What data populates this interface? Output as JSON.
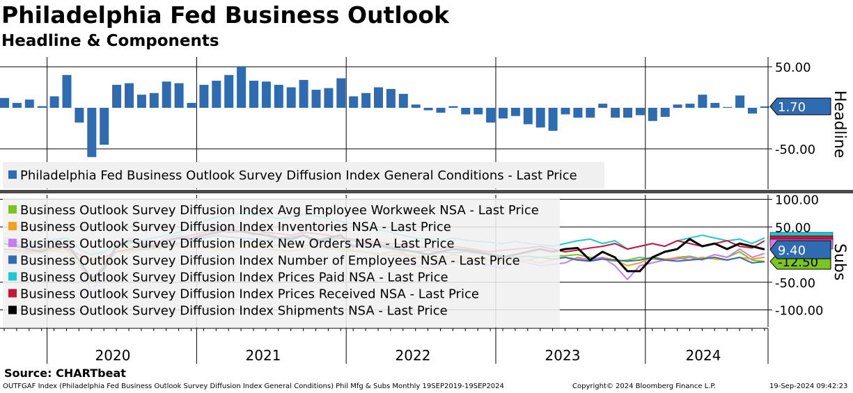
{
  "title": "Philadelphia Fed Business Outlook",
  "subtitle": "Headline & Components",
  "source": "Source: CHARTbeat",
  "footer": {
    "left": "OUTFGAF Index (Philadelphia Fed Business Outlook Survey Diffusion Index General Conditions) Phil Mfg & Subs  Monthly 19SEP2019-19SEP2024",
    "middle": "Copyright© 2024 Bloomberg Finance L.P.",
    "right": "19-Sep-2024 09:42:23"
  },
  "chart_data": [
    {
      "type": "bar",
      "panel_label": "Headline",
      "x_start": "2019-09",
      "x_end": "2024-09",
      "x_tick_labels": [
        "2020",
        "2021",
        "2022",
        "2023",
        "2024"
      ],
      "y_ticks": [
        "50.00",
        "-50.00"
      ],
      "ylim": [
        -65,
        65
      ],
      "last_value_label": "1.70",
      "legend": [
        "Philadelphia Fed Business Outlook Survey Diffusion Index General Conditions - Last Price"
      ],
      "color": "#2e6bb0",
      "values": [
        12,
        6,
        10,
        2,
        14,
        40,
        -18,
        -60,
        -45,
        28,
        30,
        16,
        18,
        32,
        30,
        6,
        28,
        33,
        40,
        50,
        33,
        32,
        28,
        25,
        34,
        22,
        24,
        36,
        14,
        18,
        25,
        23,
        17,
        4,
        -3,
        -6,
        2,
        -8,
        -8,
        -18,
        -13,
        -10,
        -20,
        -24,
        -28,
        -8,
        -12,
        -12,
        5,
        -12,
        -12,
        -9,
        -16,
        -11,
        4,
        5,
        16,
        6,
        1,
        15,
        -7,
        1.7
      ]
    },
    {
      "type": "line",
      "panel_label": "Subs",
      "x_start": "2019-09",
      "x_end": "2024-09",
      "x_tick_labels": [
        "2020",
        "2021",
        "2022",
        "2023",
        "2024"
      ],
      "y_ticks": [
        "100.00",
        "50.00",
        "-50.00",
        "-100.00"
      ],
      "ylim": [
        -120,
        110
      ],
      "last_value_labels": [
        "9.40",
        "-12.50"
      ],
      "series": [
        {
          "name": "Business Outlook Survey Diffusion Index Avg Employee Workweek NSA - Last Price",
          "color": "#7ac520",
          "values": [
            10,
            8,
            6,
            5,
            8,
            10,
            -20,
            -50,
            -20,
            10,
            15,
            12,
            14,
            18,
            20,
            22,
            24,
            25,
            22,
            20,
            18,
            15,
            17,
            20,
            18,
            15,
            10,
            12,
            8,
            5,
            0,
            5,
            2,
            -3,
            -5,
            -8,
            0,
            -5,
            -8,
            -10,
            -12,
            -8,
            -10,
            -5,
            -3,
            -2,
            0,
            -5,
            -8,
            -12,
            -10,
            -5,
            -8,
            -10,
            -5,
            -3,
            -8,
            0,
            -5,
            5,
            -10,
            -12.5
          ]
        },
        {
          "name": "Business Outlook Survey Diffusion Index Inventories NSA - Last Price",
          "color": "#f5a01c",
          "values": [
            5,
            3,
            2,
            4,
            6,
            5,
            0,
            -15,
            -10,
            5,
            3,
            8,
            10,
            12,
            15,
            13,
            12,
            10,
            8,
            12,
            15,
            10,
            8,
            6,
            10,
            15,
            12,
            8,
            6,
            4,
            2,
            -2,
            0,
            -5,
            -8,
            -10,
            -6,
            -8,
            -12,
            -10,
            -5,
            -8,
            -10,
            -15,
            -10,
            -5,
            -8,
            -10,
            -5,
            -10,
            -20,
            -15,
            -5,
            -8,
            -6,
            -10,
            -5,
            -8,
            -10,
            -5,
            -8,
            -5
          ]
        },
        {
          "name": "Business Outlook Survey Diffusion Index New Orders NSA - Last Price",
          "color": "#c77cf0",
          "values": [
            30,
            25,
            20,
            15,
            25,
            30,
            -10,
            -70,
            -30,
            20,
            30,
            25,
            18,
            30,
            35,
            30,
            40,
            45,
            48,
            50,
            35,
            40,
            30,
            25,
            35,
            20,
            25,
            38,
            12,
            20,
            15,
            10,
            5,
            -20,
            -25,
            -20,
            -15,
            -10,
            -15,
            -20,
            -25,
            -10,
            -15,
            -20,
            -18,
            -15,
            -5,
            -10,
            -5,
            -20,
            -45,
            -20,
            -15,
            -10,
            -8,
            -5,
            -10,
            0,
            -5,
            10,
            -5,
            2
          ]
        },
        {
          "name": "Business Outlook Survey Diffusion Index Number of Employees NSA - Last Price",
          "color": "#2e6bb0",
          "values": [
            20,
            18,
            15,
            10,
            12,
            15,
            -10,
            -45,
            -20,
            5,
            8,
            10,
            12,
            15,
            20,
            25,
            30,
            35,
            32,
            30,
            28,
            25,
            30,
            32,
            35,
            28,
            26,
            30,
            25,
            20,
            18,
            15,
            10,
            5,
            8,
            5,
            3,
            5,
            2,
            0,
            -2,
            -5,
            -3,
            -5,
            -8,
            -5,
            -10,
            -12,
            -8,
            -10,
            -12,
            -10,
            -5,
            -10,
            -12,
            -10,
            -8,
            -5,
            -10,
            -5,
            -15,
            -13
          ]
        },
        {
          "name": "Business Outlook Survey Diffusion Index Prices Paid NSA - Last Price",
          "color": "#1bc9cf",
          "values": [
            25,
            22,
            20,
            25,
            28,
            30,
            10,
            0,
            5,
            15,
            20,
            25,
            30,
            35,
            40,
            50,
            60,
            68,
            70,
            75,
            72,
            70,
            65,
            68,
            72,
            70,
            65,
            60,
            55,
            50,
            45,
            40,
            35,
            30,
            28,
            25,
            30,
            26,
            24,
            22,
            20,
            24,
            20,
            18,
            15,
            20,
            25,
            28,
            20,
            25,
            10,
            15,
            20,
            15,
            25,
            30,
            35,
            30,
            25,
            28,
            20,
            30
          ]
        },
        {
          "name": "Business Outlook Survey Diffusion Index Prices Received NSA - Last Price",
          "color": "#c8163a",
          "values": [
            10,
            8,
            5,
            8,
            12,
            10,
            0,
            -10,
            -5,
            5,
            10,
            15,
            20,
            25,
            30,
            35,
            40,
            45,
            40,
            42,
            45,
            40,
            38,
            35,
            40,
            38,
            35,
            30,
            28,
            25,
            22,
            20,
            18,
            15,
            12,
            10,
            15,
            12,
            8,
            5,
            8,
            10,
            12,
            15,
            10,
            5,
            8,
            12,
            15,
            20,
            10,
            15,
            20,
            15,
            25,
            20,
            15,
            20,
            25,
            15,
            12,
            25
          ]
        },
        {
          "name": "Business Outlook Survey Diffusion Index Shipments NSA - Last Price",
          "color": "#000000",
          "values": [
            20,
            15,
            10,
            5,
            15,
            20,
            -10,
            -45,
            -25,
            15,
            25,
            20,
            15,
            25,
            30,
            28,
            35,
            40,
            45,
            42,
            38,
            35,
            30,
            28,
            35,
            25,
            30,
            35,
            15,
            20,
            18,
            12,
            8,
            5,
            0,
            5,
            10,
            8,
            5,
            0,
            -5,
            0,
            5,
            10,
            5,
            10,
            12,
            -10,
            5,
            -5,
            -30,
            -30,
            -5,
            5,
            10,
            28,
            15,
            20,
            10,
            20,
            15,
            9.4
          ]
        }
      ]
    }
  ]
}
